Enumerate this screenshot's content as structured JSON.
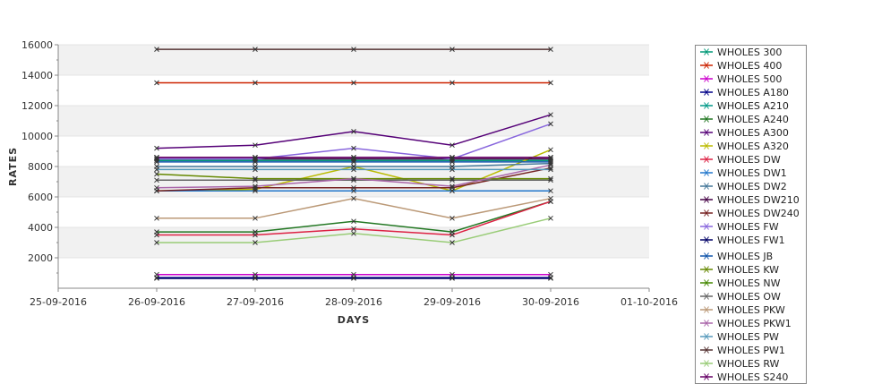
{
  "chart_data": {
    "type": "line",
    "xlabel": "DAYS",
    "ylabel": "RATES",
    "x_ticks": [
      "25-09-2016",
      "26-09-2016",
      "27-09-2016",
      "28-09-2016",
      "29-09-2016",
      "30-09-2016",
      "01-10-2016"
    ],
    "categories": [
      "26-09-2016",
      "27-09-2016",
      "28-09-2016",
      "29-09-2016",
      "30-09-2016"
    ],
    "ylim": [
      0,
      16000
    ],
    "y_ticks": [
      2000,
      4000,
      6000,
      8000,
      10000,
      12000,
      14000,
      16000
    ],
    "grid": "alternating horizontal bands",
    "legend_position": "right",
    "series": [
      {
        "name": "WHOLES 300",
        "color": "#009977",
        "values": [
          8400,
          8400,
          8400,
          8400,
          8400
        ]
      },
      {
        "name": "WHOLES 400",
        "color": "#cc2200",
        "values": [
          13500,
          13500,
          13500,
          13500,
          13500
        ]
      },
      {
        "name": "WHOLES 500",
        "color": "#cc00cc",
        "values": [
          900,
          900,
          900,
          900,
          900
        ]
      },
      {
        "name": "WHOLES A180",
        "color": "#000088",
        "values": [
          700,
          700,
          700,
          700,
          700
        ]
      },
      {
        "name": "WHOLES A210",
        "color": "#009988",
        "values": [
          8600,
          8600,
          8600,
          8600,
          8600
        ]
      },
      {
        "name": "WHOLES A240",
        "color": "#227722",
        "values": [
          3700,
          3700,
          4400,
          3700,
          5700
        ]
      },
      {
        "name": "WHOLES A300",
        "color": "#550077",
        "values": [
          9200,
          9400,
          10300,
          9400,
          11400
        ]
      },
      {
        "name": "WHOLES A320",
        "color": "#bbbb00",
        "values": [
          6400,
          6500,
          8000,
          6400,
          9100
        ]
      },
      {
        "name": "WHOLES DW",
        "color": "#dd2244",
        "values": [
          3500,
          3500,
          3900,
          3500,
          5700
        ]
      },
      {
        "name": "WHOLES DW1",
        "color": "#2277cc",
        "values": [
          6400,
          6400,
          6400,
          6400,
          6400
        ]
      },
      {
        "name": "WHOLES DW2",
        "color": "#447799",
        "values": [
          8000,
          8000,
          8000,
          8000,
          8200
        ]
      },
      {
        "name": "WHOLES DW210",
        "color": "#440044",
        "values": [
          8500,
          8500,
          8500,
          8500,
          8500
        ]
      },
      {
        "name": "WHOLES DW240",
        "color": "#772222",
        "values": [
          6400,
          6600,
          6600,
          6600,
          7900
        ]
      },
      {
        "name": "WHOLES FW",
        "color": "#8866dd",
        "values": [
          8500,
          8500,
          9200,
          8500,
          10800
        ]
      },
      {
        "name": "WHOLES FW1",
        "color": "#000066",
        "values": [
          650,
          650,
          650,
          650,
          650
        ]
      },
      {
        "name": "WHOLES JB",
        "color": "#1155aa",
        "values": [
          8300,
          8300,
          8300,
          8300,
          8300
        ]
      },
      {
        "name": "WHOLES KW",
        "color": "#668800",
        "values": [
          7500,
          7200,
          7200,
          7200,
          7200
        ]
      },
      {
        "name": "WHOLES NW",
        "color": "#448800",
        "values": [
          8600,
          8600,
          8600,
          8600,
          8600
        ]
      },
      {
        "name": "WHOLES OW",
        "color": "#666666",
        "values": [
          7100,
          7100,
          7100,
          7100,
          7100
        ]
      },
      {
        "name": "WHOLES PKW",
        "color": "#bb9977",
        "values": [
          4600,
          4600,
          5900,
          4600,
          5900
        ]
      },
      {
        "name": "WHOLES PKW1",
        "color": "#aa66aa",
        "values": [
          6600,
          6700,
          7200,
          6700,
          8100
        ]
      },
      {
        "name": "WHOLES PW",
        "color": "#5599bb",
        "values": [
          7800,
          7800,
          7800,
          7800,
          7800
        ]
      },
      {
        "name": "WHOLES PW1",
        "color": "#553333",
        "values": [
          15700,
          15700,
          15700,
          15700,
          15700
        ]
      },
      {
        "name": "WHOLES RW",
        "color": "#99cc77",
        "values": [
          3000,
          3000,
          3600,
          3000,
          4600
        ]
      },
      {
        "name": "WHOLES S240",
        "color": "#660066",
        "values": [
          8600,
          8600,
          8600,
          8600,
          8600
        ]
      }
    ]
  }
}
